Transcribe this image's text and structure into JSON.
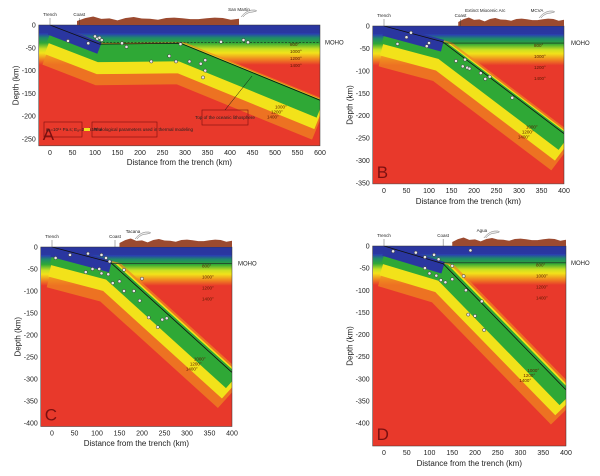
{
  "colors": {
    "mantle": "#e8392b",
    "crust": "#2a36a0",
    "green": "#2fa836",
    "yellow": "#f2e21a",
    "orange": "#f08a20",
    "topo": "#9b4a30",
    "letter": "#7a1010"
  },
  "panels": [
    {
      "letter": "A",
      "xlabel": "Distance from the trench (km)",
      "ylabel": "Depth (km)",
      "xticks": [
        "0",
        "50",
        "100",
        "150",
        "200",
        "250",
        "300",
        "350",
        "400",
        "450",
        "500",
        "550",
        "600"
      ],
      "yticks": [
        "0",
        "-50",
        "-100",
        "-150",
        "-200",
        "-250"
      ],
      "moho": "MOHO",
      "top_labels": [
        {
          "text": "Trench",
          "x": 0
        },
        {
          "text": "Coast",
          "x": 65
        },
        {
          "text": "San Martin",
          "x": 420
        }
      ],
      "isotherms_wedge": [
        "800°",
        "1000°",
        "1200°",
        "1400°"
      ],
      "isotherms_slab": [
        "1000°",
        "1200°",
        "1400°"
      ],
      "annotation": "Top of the oceanic lithosphere",
      "legend": {
        "params": "η₀=10¹⁹ Pa.s; Eₐ=250kJ/mol",
        "desc": "Rheological parameters used in thermal modeling"
      },
      "slab": [
        [
          0,
          0
        ],
        [
          110,
          -42
        ],
        [
          290,
          -40
        ],
        [
          600,
          -165
        ]
      ],
      "quakes": [
        [
          40,
          -35
        ],
        [
          85,
          -40
        ],
        [
          100,
          -25
        ],
        [
          105,
          -30
        ],
        [
          110,
          -28
        ],
        [
          115,
          -33
        ],
        [
          160,
          -40
        ],
        [
          170,
          -48
        ],
        [
          225,
          -80
        ],
        [
          265,
          -68
        ],
        [
          280,
          -80
        ],
        [
          310,
          -80
        ],
        [
          335,
          -85
        ],
        [
          345,
          -77
        ],
        [
          345,
          -100
        ],
        [
          340,
          -115
        ],
        [
          290,
          -42
        ],
        [
          380,
          -37
        ],
        [
          430,
          -33
        ],
        [
          440,
          -38
        ]
      ]
    },
    {
      "letter": "B",
      "xlabel": "Distance from the trench (km)",
      "ylabel": "Depth (km)",
      "xticks": [
        "0",
        "50",
        "100",
        "150",
        "200",
        "250",
        "300",
        "350",
        "400"
      ],
      "yticks": [
        "0",
        "-50",
        "-100",
        "-150",
        "-200",
        "-250",
        "-300",
        "-350"
      ],
      "moho": "MOHO",
      "top_labels": [
        {
          "text": "Trench",
          "x": 0
        },
        {
          "text": "Coast",
          "x": 170
        },
        {
          "text": "Extinct Miocenic Arc",
          "x": 225
        },
        {
          "text": "MCVA",
          "x": 340
        }
      ],
      "isotherms_wedge": [
        "800°",
        "1000°",
        "1200°",
        "1400°"
      ],
      "isotherms_slab": [
        "1000°",
        "1200°",
        "1400°"
      ],
      "slab": [
        [
          0,
          0
        ],
        [
          130,
          -35
        ],
        [
          400,
          -240
        ]
      ],
      "quakes": [
        [
          30,
          -40
        ],
        [
          50,
          -25
        ],
        [
          60,
          -15
        ],
        [
          95,
          -45
        ],
        [
          100,
          -38
        ],
        [
          160,
          -78
        ],
        [
          175,
          -90
        ],
        [
          180,
          -75
        ],
        [
          185,
          -93
        ],
        [
          190,
          -95
        ],
        [
          215,
          -105
        ],
        [
          225,
          -118
        ],
        [
          235,
          -113
        ],
        [
          285,
          -160
        ]
      ]
    },
    {
      "letter": "C",
      "xlabel": "Distance from the trench (km)",
      "ylabel": "Depth (km)",
      "xticks": [
        "0",
        "50",
        "100",
        "150",
        "200",
        "250",
        "300",
        "350",
        "400"
      ],
      "yticks": [
        "0",
        "-50",
        "-100",
        "-150",
        "-200",
        "-250",
        "-300",
        "-350",
        "-400"
      ],
      "moho": "MOHO",
      "top_labels": [
        {
          "text": "Trench",
          "x": 0
        },
        {
          "text": "Coast",
          "x": 140
        },
        {
          "text": "Tacana",
          "x": 180
        }
      ],
      "isotherms_wedge": [
        "800°",
        "1000°",
        "1200°",
        "1400°"
      ],
      "isotherms_slab": [
        "1000°",
        "1200°",
        "1400°"
      ],
      "slab": [
        [
          0,
          0
        ],
        [
          130,
          -35
        ],
        [
          400,
          -285
        ]
      ],
      "quakes": [
        [
          8,
          -25
        ],
        [
          40,
          -18
        ],
        [
          80,
          -15
        ],
        [
          110,
          -18
        ],
        [
          120,
          -25
        ],
        [
          128,
          -33
        ],
        [
          75,
          -57
        ],
        [
          90,
          -50
        ],
        [
          105,
          -50
        ],
        [
          110,
          -60
        ],
        [
          125,
          -62
        ],
        [
          135,
          -82
        ],
        [
          150,
          -78
        ],
        [
          160,
          -100
        ],
        [
          160,
          -52
        ],
        [
          182,
          -100
        ],
        [
          195,
          -122
        ],
        [
          200,
          -72
        ],
        [
          215,
          -160
        ],
        [
          235,
          -182
        ],
        [
          245,
          -165
        ],
        [
          255,
          -162
        ]
      ]
    },
    {
      "letter": "D",
      "xlabel": "Distance from the trench (km)",
      "ylabel": "Depth (km)",
      "xticks": [
        "0",
        "50",
        "100",
        "150",
        "200",
        "250",
        "300",
        "350",
        "400"
      ],
      "yticks": [
        "0",
        "-50",
        "-100",
        "-150",
        "-200",
        "-250",
        "-300",
        "-350",
        "-400"
      ],
      "moho": "MOHO",
      "top_labels": [
        {
          "text": "Trench",
          "x": 0
        },
        {
          "text": "Coast",
          "x": 130
        },
        {
          "text": "Agua",
          "x": 215
        }
      ],
      "isotherms_wedge": [
        "800°",
        "1000°",
        "1200°",
        "1400°"
      ],
      "isotherms_slab": [
        "1000°",
        "1200°",
        "1400°"
      ],
      "slab": [
        [
          0,
          0
        ],
        [
          130,
          -40
        ],
        [
          400,
          -325
        ]
      ],
      "quakes": [
        [
          20,
          -12
        ],
        [
          70,
          -15
        ],
        [
          90,
          -25
        ],
        [
          110,
          -20
        ],
        [
          120,
          -30
        ],
        [
          90,
          -50
        ],
        [
          100,
          -62
        ],
        [
          115,
          -67
        ],
        [
          125,
          -77
        ],
        [
          135,
          -82
        ],
        [
          150,
          -45
        ],
        [
          150,
          -75
        ],
        [
          175,
          -68
        ],
        [
          180,
          -100
        ],
        [
          215,
          -125
        ],
        [
          185,
          -155
        ],
        [
          200,
          -158
        ],
        [
          220,
          -190
        ],
        [
          190,
          -10
        ]
      ]
    }
  ]
}
